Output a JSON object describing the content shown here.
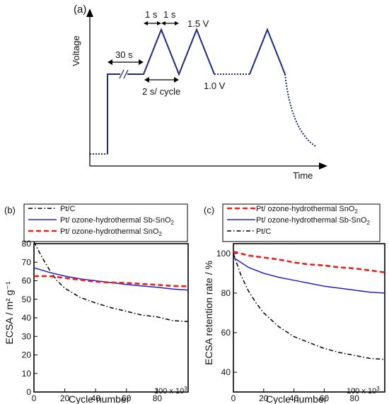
{
  "panel_a": {
    "label": "(a)",
    "ylabel": "Voltage",
    "xlabel": "Time",
    "ann_hold": "30 s",
    "ann_up": "1 s",
    "ann_down": "1 s",
    "ann_upper": "1.5 V",
    "ann_lower": "1.0 V",
    "ann_cycle": "2 s/ cycle"
  },
  "chart_data": [
    {
      "type": "line",
      "panel": "(b)",
      "xlabel": "Cycle number",
      "ylabel": "ECSA / m² g⁻¹",
      "x_multiplier": "100 x 10",
      "x_multiplier_exp": "3",
      "xlim": [
        0,
        100
      ],
      "ylim": [
        0,
        80
      ],
      "xticks": [
        0,
        20,
        40,
        60,
        80
      ],
      "yticks": [
        0,
        10,
        20,
        30,
        40,
        50,
        60,
        70,
        80
      ],
      "legend_position": "top",
      "series": [
        {
          "name": "Pt/C",
          "color": "#000000",
          "style": "dashdot",
          "x": [
            0,
            5,
            10,
            15,
            20,
            30,
            40,
            50,
            60,
            70,
            80,
            90,
            100
          ],
          "y": [
            81,
            73,
            66,
            60,
            56,
            51,
            48,
            45.5,
            43.5,
            41.5,
            40.5,
            38.5,
            38
          ]
        },
        {
          "name": "Pt/ ozone-hydrothermal Sb-SnO2",
          "color": "#1f1fd0",
          "style": "solid",
          "x": [
            0,
            10,
            20,
            30,
            40,
            50,
            60,
            70,
            80,
            90,
            100
          ],
          "y": [
            67,
            64.5,
            62.5,
            61,
            60,
            59,
            58,
            57.2,
            56.5,
            55.5,
            55
          ]
        },
        {
          "name": "Pt/ ozone-hydrothermal SnO2",
          "color": "#e8201a",
          "style": "dashed",
          "x": [
            0,
            10,
            20,
            30,
            40,
            50,
            60,
            70,
            80,
            90,
            100
          ],
          "y": [
            62.5,
            62.5,
            61.5,
            60.5,
            59.5,
            59,
            58.8,
            58.3,
            57.8,
            57.2,
            57
          ]
        }
      ]
    },
    {
      "type": "line",
      "panel": "(c)",
      "xlabel": "Cycle number",
      "ylabel": "ECSA retention rate / %",
      "x_multiplier": "100 x 10",
      "x_multiplier_exp": "3",
      "xlim": [
        0,
        100
      ],
      "ylim": [
        30,
        105
      ],
      "xticks": [
        0,
        20,
        40,
        60,
        80
      ],
      "yticks": [
        40,
        60,
        80,
        100
      ],
      "legend_position": "top",
      "series": [
        {
          "name": "Pt/ ozone-hydrothermal SnO2",
          "color": "#e8201a",
          "style": "dashed",
          "x": [
            0,
            10,
            20,
            30,
            40,
            50,
            60,
            70,
            80,
            90,
            100
          ],
          "y": [
            101,
            99,
            98,
            97,
            95.5,
            94.5,
            94,
            93,
            92.5,
            91.5,
            90.5
          ]
        },
        {
          "name": "Pt/ ozone-hydrothermal Sb-SnO2",
          "color": "#1f1fd0",
          "style": "solid",
          "x": [
            0,
            10,
            20,
            30,
            40,
            50,
            60,
            70,
            80,
            90,
            100
          ],
          "y": [
            98,
            93,
            90,
            88,
            86.5,
            85,
            83.5,
            82.5,
            81.5,
            80.5,
            80
          ]
        },
        {
          "name": "Pt/C",
          "color": "#000000",
          "style": "dashdot",
          "x": [
            0,
            5,
            10,
            15,
            20,
            30,
            40,
            50,
            60,
            70,
            80,
            90,
            100
          ],
          "y": [
            100,
            89,
            81,
            75,
            70,
            63,
            58,
            55,
            52,
            50,
            48.5,
            47,
            46.5
          ]
        }
      ]
    }
  ]
}
